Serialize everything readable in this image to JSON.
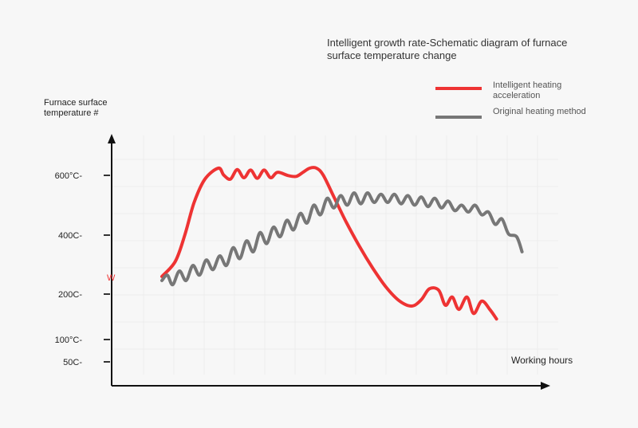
{
  "chart_data": {
    "type": "line",
    "title": "Intelligent growth rate-Schematic diagram of furnace surface temperature change",
    "title_lines": [
      "Intelligent growth rate-Schematic diagram of furnace",
      "surface temperature change"
    ],
    "ylabel_lines": [
      "Furnace surface",
      "temperature #"
    ],
    "xlabel": "Working hours",
    "yticks": [
      {
        "label": "600°C-",
        "value": 600
      },
      {
        "label": "400C-",
        "value": 400
      },
      {
        "label": "200C-",
        "value": 200
      },
      {
        "label": "100°C-",
        "value": 100
      },
      {
        "label": "50C-",
        "value": 50
      }
    ],
    "ylim": [
      0,
      720
    ],
    "grid": true,
    "legend_position": "top-right",
    "stray_mark": "W",
    "series": [
      {
        "name": "Intelligent heating acceleration",
        "legend_lines": [
          "Intelligent heating",
          "acceleration"
        ],
        "color": "#ee3333",
        "points": [
          [
            0,
            230
          ],
          [
            1,
            285
          ],
          [
            1.7,
            380
          ],
          [
            2.4,
            500
          ],
          [
            3.2,
            585
          ],
          [
            4.2,
            625
          ],
          [
            4.6,
            600
          ],
          [
            5.1,
            585
          ],
          [
            5.6,
            620
          ],
          [
            6.1,
            590
          ],
          [
            6.6,
            618
          ],
          [
            7.1,
            588
          ],
          [
            7.6,
            618
          ],
          [
            8.1,
            590
          ],
          [
            8.6,
            610
          ],
          [
            9.4,
            598
          ],
          [
            10,
            595
          ],
          [
            10.5,
            610
          ],
          [
            11,
            625
          ],
          [
            11.5,
            625
          ],
          [
            12,
            600
          ],
          [
            12.8,
            520
          ],
          [
            13.7,
            430
          ],
          [
            14.7,
            340
          ],
          [
            15.7,
            260
          ],
          [
            16.7,
            190
          ],
          [
            17.7,
            140
          ],
          [
            18.6,
            122
          ],
          [
            19.3,
            145
          ],
          [
            19.9,
            185
          ],
          [
            20.6,
            180
          ],
          [
            21.1,
            125
          ],
          [
            21.6,
            155
          ],
          [
            22.1,
            110
          ],
          [
            22.7,
            155
          ],
          [
            23.2,
            95
          ],
          [
            23.8,
            140
          ],
          [
            24.4,
            110
          ],
          [
            24.9,
            75
          ]
        ]
      },
      {
        "name": "Original heating method",
        "legend_lines": [
          "Original heating method"
        ],
        "color": "#777777",
        "points": [
          [
            0,
            215
          ],
          [
            0.4,
            235
          ],
          [
            0.8,
            200
          ],
          [
            1.3,
            250
          ],
          [
            1.8,
            215
          ],
          [
            2.3,
            270
          ],
          [
            2.8,
            235
          ],
          [
            3.3,
            290
          ],
          [
            3.8,
            255
          ],
          [
            4.3,
            305
          ],
          [
            4.8,
            270
          ],
          [
            5.3,
            335
          ],
          [
            5.8,
            295
          ],
          [
            6.3,
            360
          ],
          [
            6.8,
            320
          ],
          [
            7.3,
            390
          ],
          [
            7.8,
            350
          ],
          [
            8.3,
            410
          ],
          [
            8.8,
            375
          ],
          [
            9.3,
            435
          ],
          [
            9.8,
            400
          ],
          [
            10.3,
            460
          ],
          [
            10.8,
            425
          ],
          [
            11.3,
            490
          ],
          [
            11.8,
            455
          ],
          [
            12.3,
            515
          ],
          [
            12.8,
            480
          ],
          [
            13.3,
            525
          ],
          [
            13.8,
            490
          ],
          [
            14.3,
            535
          ],
          [
            14.8,
            495
          ],
          [
            15.3,
            535
          ],
          [
            15.8,
            500
          ],
          [
            16.3,
            530
          ],
          [
            16.8,
            500
          ],
          [
            17.3,
            530
          ],
          [
            17.8,
            495
          ],
          [
            18.3,
            525
          ],
          [
            18.8,
            490
          ],
          [
            19.3,
            520
          ],
          [
            19.8,
            485
          ],
          [
            20.3,
            515
          ],
          [
            20.8,
            480
          ],
          [
            21.3,
            505
          ],
          [
            21.8,
            470
          ],
          [
            22.3,
            490
          ],
          [
            22.8,
            465
          ],
          [
            23.3,
            490
          ],
          [
            23.8,
            455
          ],
          [
            24.3,
            465
          ],
          [
            24.8,
            420
          ],
          [
            25.3,
            440
          ],
          [
            25.8,
            385
          ],
          [
            26.4,
            375
          ],
          [
            26.8,
            320
          ]
        ]
      }
    ]
  }
}
